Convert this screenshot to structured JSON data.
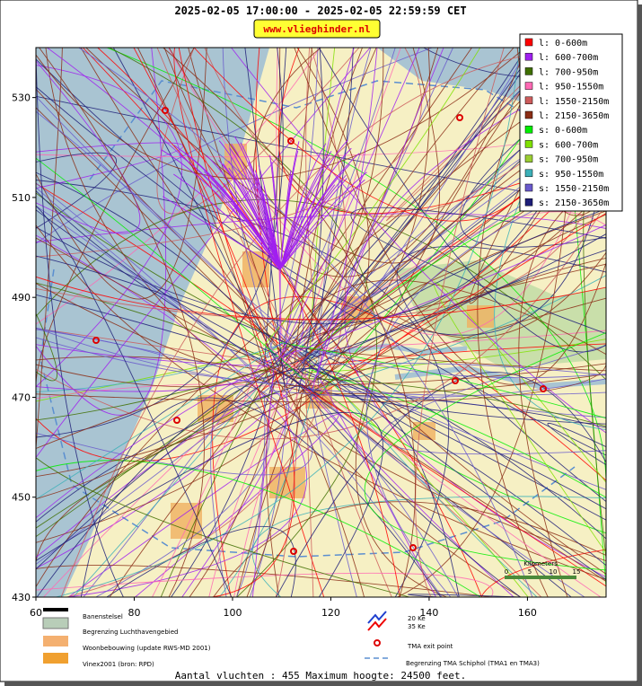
{
  "header": {
    "title": "2025-02-05 17:00:00 - 2025-02-05 22:59:59 CET",
    "badge": "www.vlieghinder.nl"
  },
  "map": {
    "xlim": [
      60,
      176
    ],
    "ylim": [
      430,
      540
    ],
    "x_ticks": [
      60,
      80,
      100,
      120,
      140,
      160
    ],
    "y_ticks": [
      430,
      450,
      470,
      490,
      510,
      530
    ],
    "scale_bar": {
      "title": "Kilometers",
      "ticks": [
        "0",
        "5",
        "10",
        "15"
      ]
    }
  },
  "legend": [
    {
      "label": "l: 0-600m",
      "color": "#ff0000"
    },
    {
      "label": "l: 600-700m",
      "color": "#a020f0"
    },
    {
      "label": "l: 700-950m",
      "color": "#3f6f00"
    },
    {
      "label": "l: 950-1550m",
      "color": "#ff69b4"
    },
    {
      "label": "l: 1550-2150m",
      "color": "#cd5c5c"
    },
    {
      "label": "l: 2150-3650m",
      "color": "#8b2e16"
    },
    {
      "label": "s: 0-600m",
      "color": "#00ee00"
    },
    {
      "label": "s: 600-700m",
      "color": "#7fe000"
    },
    {
      "label": "s: 700-950m",
      "color": "#9acd32"
    },
    {
      "label": "s: 950-1550m",
      "color": "#3cb0b8"
    },
    {
      "label": "s: 1550-2150m",
      "color": "#6a5acd"
    },
    {
      "label": "s: 2150-3650m",
      "color": "#1e1e78"
    }
  ],
  "map_legend": {
    "runways": "Banenstelsel",
    "airport_boundary": "Begrenzing Luchthavengebied",
    "housing": "Woonbebouwing (update RWS-MD 2001)",
    "vinex": "Vinex2001 (bron: RPD)",
    "ke20": "20 Ke",
    "ke35": "35 Ke",
    "tma_exit": "TMA exit point",
    "tma_boundary": "Begrenzing TMA Schiphol  (TMA1 en TMA3)"
  },
  "footer": "Aantal vluchten : 455 Maximum hoogte: 24500 feet."
}
